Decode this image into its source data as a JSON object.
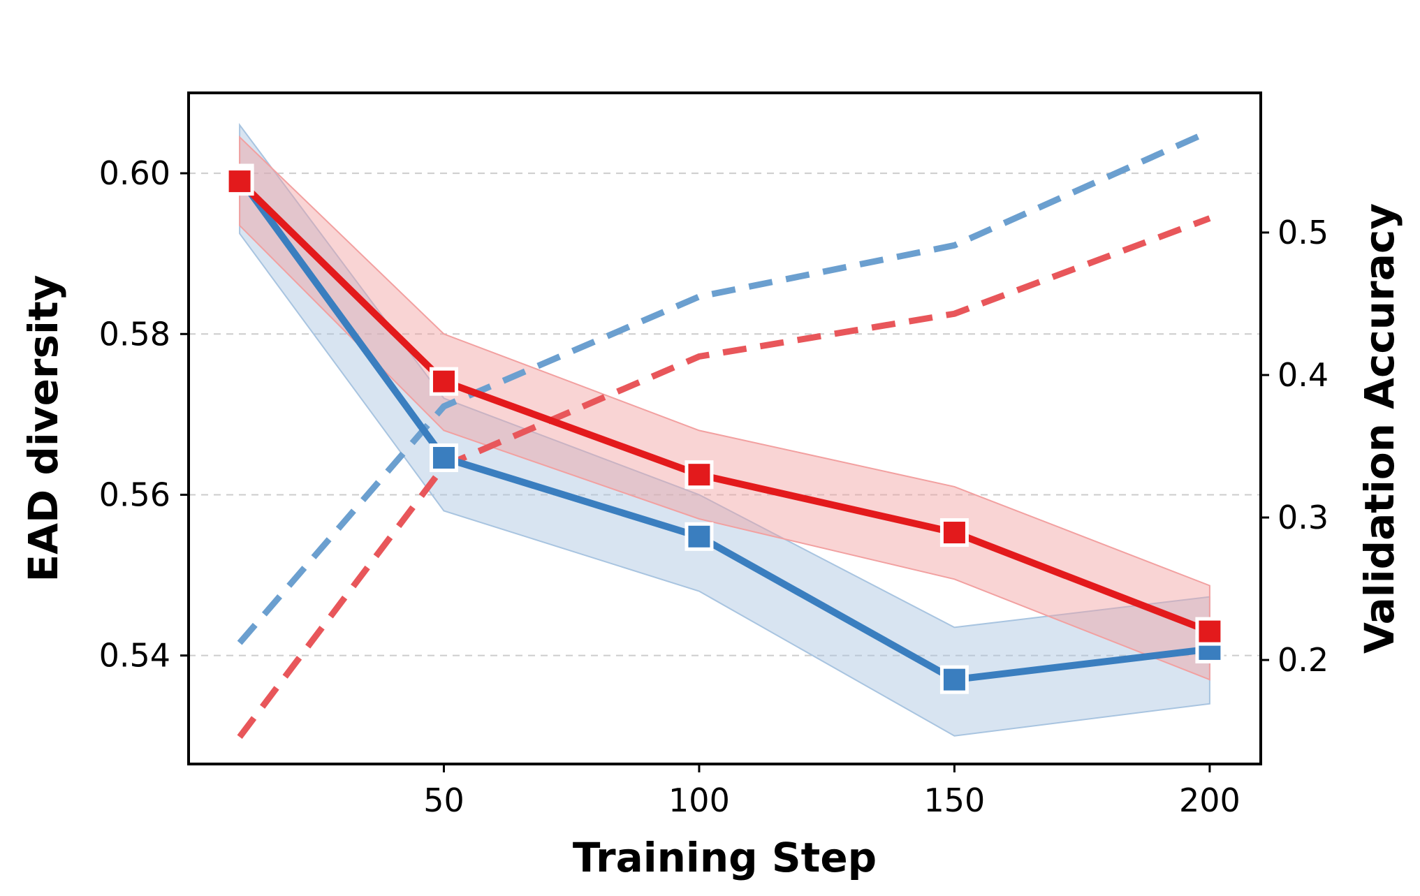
{
  "chart_data": {
    "type": "line",
    "title": "",
    "xlabel": "Training Step",
    "ylabel": "EAD diversity",
    "y2label": "Validation Accuracy",
    "xlim": [
      0,
      210
    ],
    "ylim": [
      0.5265,
      0.61
    ],
    "y2lim": [
      0.127,
      0.598
    ],
    "x_ticks": [
      50,
      100,
      150,
      200
    ],
    "x_tick_labels": [
      "50",
      "100",
      "150",
      "200"
    ],
    "y_ticks": [
      0.54,
      0.56,
      0.58,
      0.6
    ],
    "y_tick_labels": [
      "0.54",
      "0.56",
      "0.58",
      "0.60"
    ],
    "y2_ticks": [
      0.2,
      0.3,
      0.4,
      0.5
    ],
    "y2_tick_labels": [
      "0.2",
      "0.3",
      "0.4",
      "0.5"
    ],
    "grid": "horizontal dashed",
    "x": [
      10,
      50,
      100,
      150,
      200
    ],
    "series": [
      {
        "name": "blue",
        "axis": "left",
        "style": "solid",
        "marker": "square",
        "color": "#3a7ebf",
        "band_color": "#a8c4e0",
        "values": [
          0.5994,
          0.5646,
          0.5548,
          0.537,
          0.5408
        ],
        "lower": [
          0.5925,
          0.558,
          0.548,
          0.53,
          0.534
        ],
        "upper": [
          0.606,
          0.572,
          0.56,
          0.5435,
          0.5473
        ]
      },
      {
        "name": "red",
        "axis": "left",
        "style": "solid",
        "marker": "square",
        "color": "#e31a1c",
        "band_color": "#f2a0a0",
        "values": [
          0.599,
          0.5741,
          0.5625,
          0.5553,
          0.543
        ],
        "lower": [
          0.5935,
          0.568,
          0.557,
          0.5495,
          0.537
        ],
        "upper": [
          0.6045,
          0.58,
          0.568,
          0.561,
          0.5487
        ]
      },
      {
        "name": "blue-dashed",
        "axis": "right",
        "style": "dashed",
        "color": "#6b9fcf",
        "values": [
          0.212,
          0.378,
          0.455,
          0.491,
          0.571
        ]
      },
      {
        "name": "red-dashed",
        "axis": "right",
        "style": "dashed",
        "color": "#e8565a",
        "values": [
          0.146,
          0.336,
          0.413,
          0.443,
          0.51
        ]
      }
    ]
  }
}
